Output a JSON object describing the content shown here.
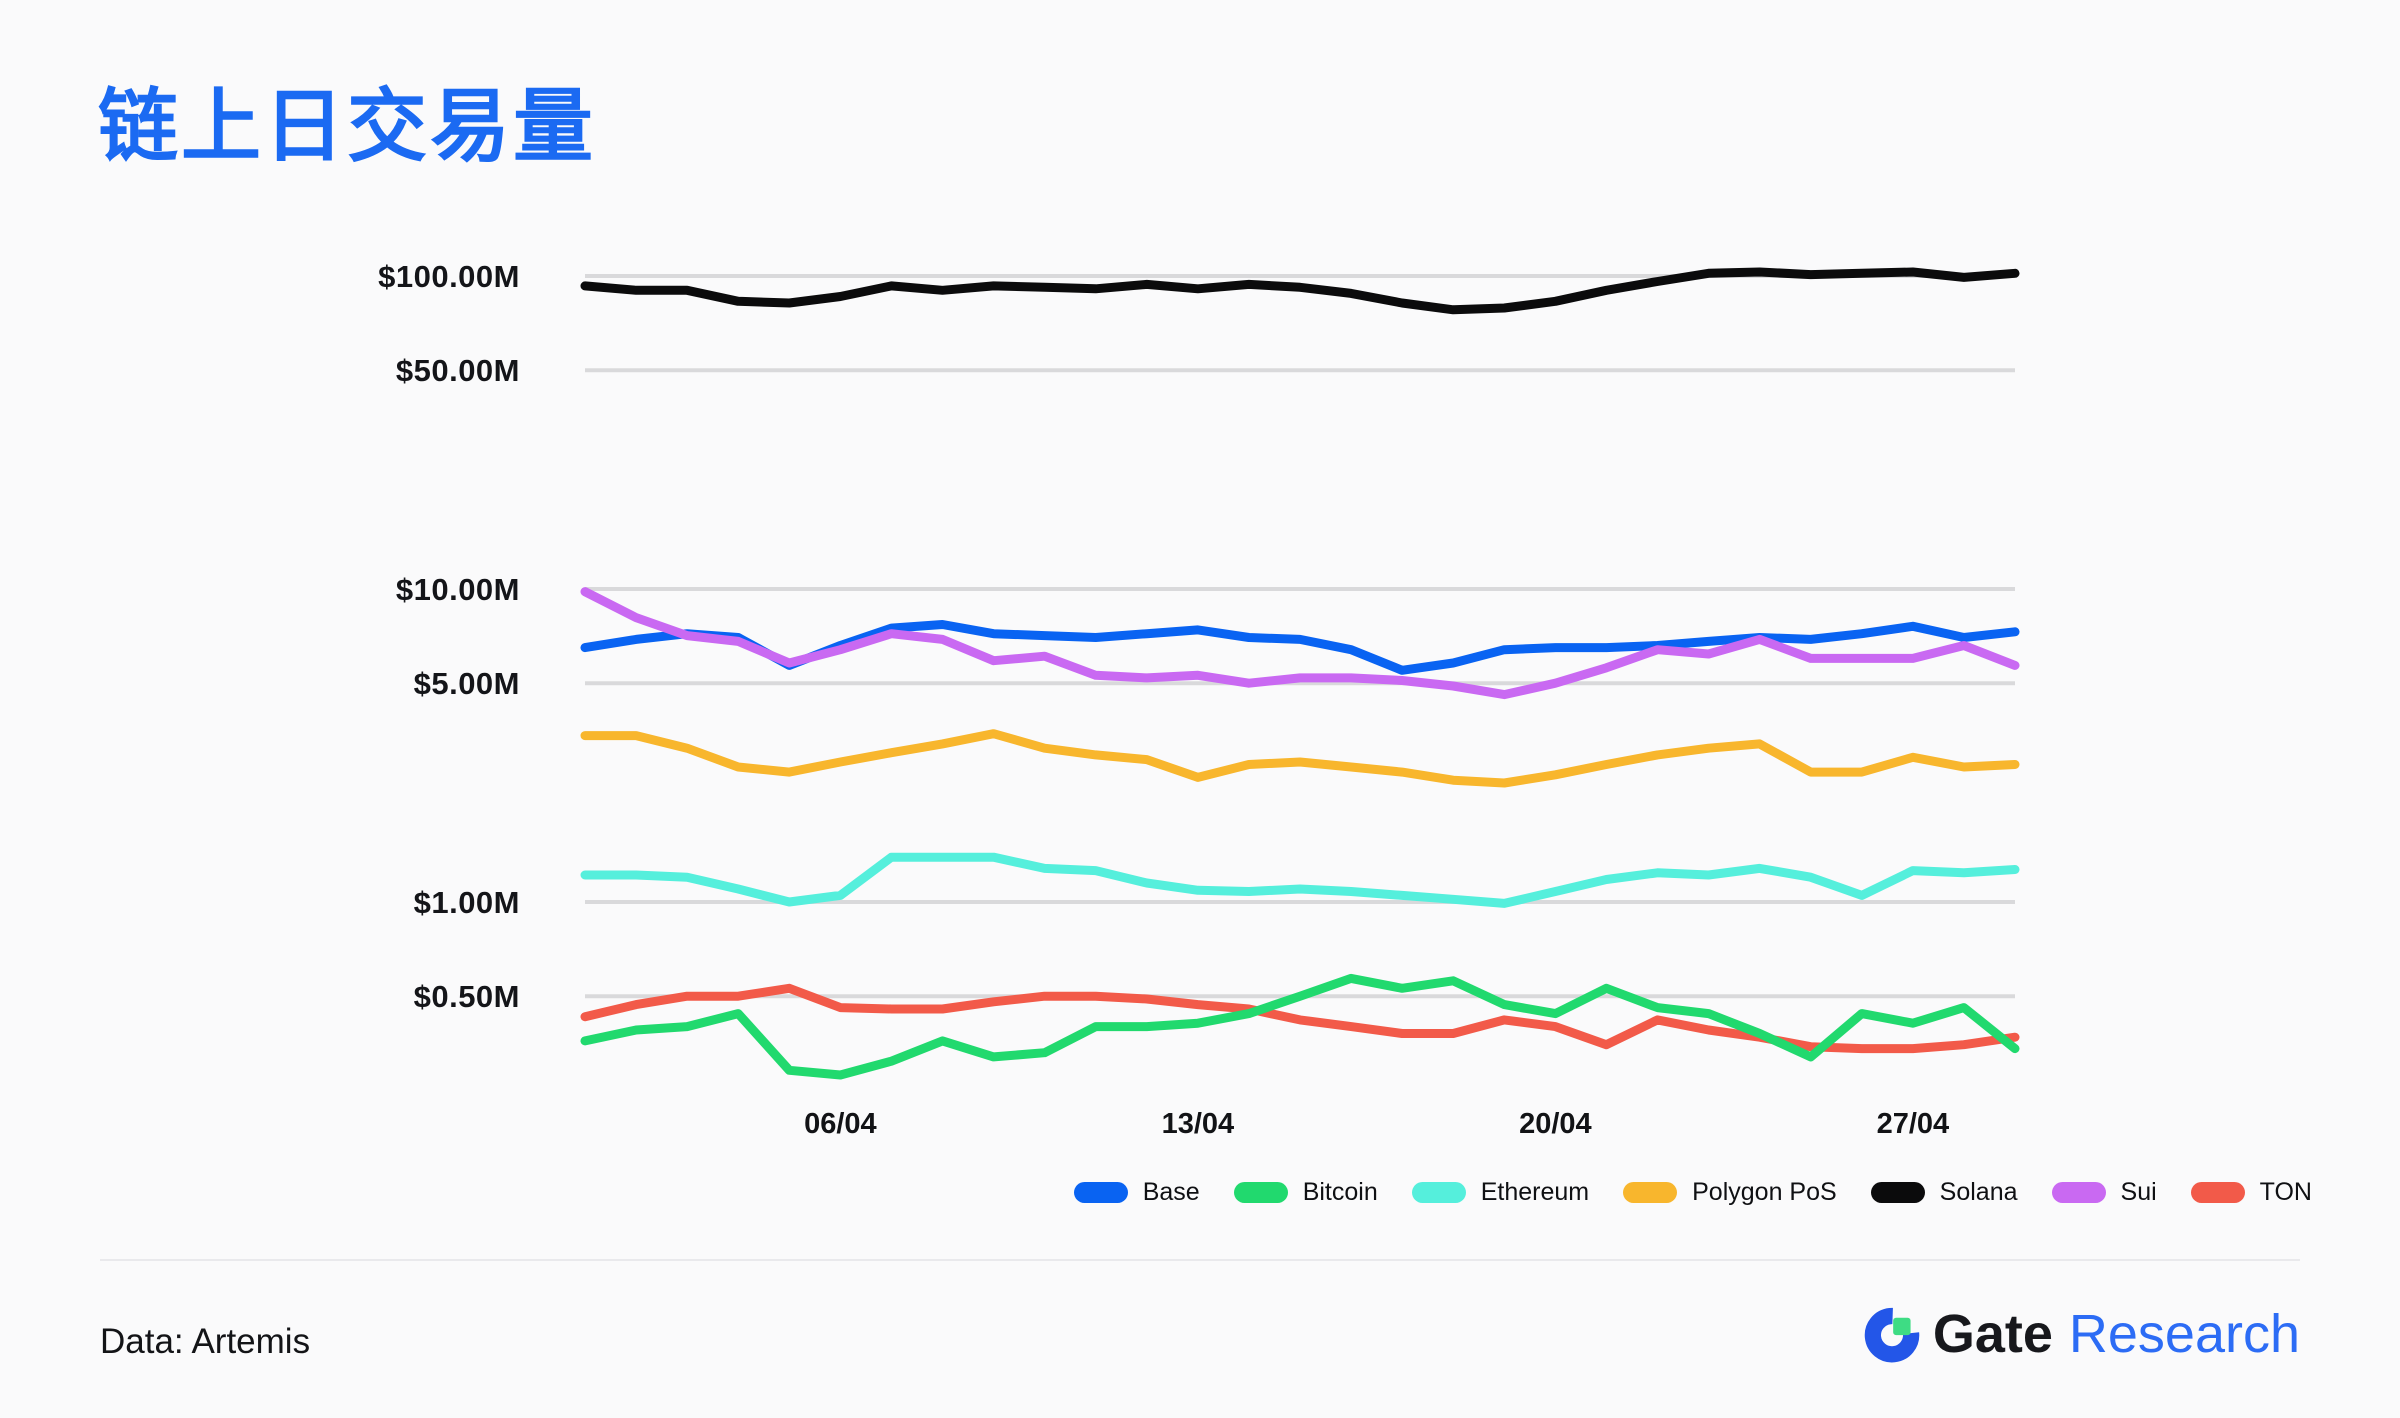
{
  "title": "链上日交易量",
  "source_label": "Data: Artemis",
  "brand": {
    "name_primary": "Gate",
    "name_secondary": "Research"
  },
  "colors": {
    "background": "#FAFAFB",
    "title": "#1B6AF2",
    "grid": "#D9D9DB",
    "axis_text": "#141519",
    "separator": "#E9E9EC",
    "brand_ring_blue": "#2356E8",
    "brand_square_green": "#3EDC84",
    "brand_research_blue": "#2C6CF5"
  },
  "chart_data": {
    "type": "line",
    "title": "链上日交易量",
    "unit": "USD millions per day",
    "y_scale": "log",
    "grid": "horizontal-only",
    "legend_position": "bottom-right",
    "x": [
      "01/04",
      "02/04",
      "03/04",
      "04/04",
      "05/04",
      "06/04",
      "07/04",
      "08/04",
      "09/04",
      "10/04",
      "11/04",
      "12/04",
      "13/04",
      "14/04",
      "15/04",
      "16/04",
      "17/04",
      "18/04",
      "19/04",
      "20/04",
      "21/04",
      "22/04",
      "23/04",
      "24/04",
      "25/04",
      "26/04",
      "27/04",
      "28/04",
      "29/04"
    ],
    "x_tick_labels": [
      {
        "label": "06/04",
        "index": 5
      },
      {
        "label": "13/04",
        "index": 12
      },
      {
        "label": "20/04",
        "index": 19
      },
      {
        "label": "27/04",
        "index": 26
      }
    ],
    "y_ticks": [
      {
        "label": "$100.00M",
        "value": 100
      },
      {
        "label": "$50.00M",
        "value": 50
      },
      {
        "label": "$10.00M",
        "value": 10
      },
      {
        "label": "$5.00M",
        "value": 5
      },
      {
        "label": "$1.00M",
        "value": 1
      },
      {
        "label": "$0.50M",
        "value": 0.5
      }
    ],
    "legend": [
      {
        "label": "Base",
        "color": "#0963F2"
      },
      {
        "label": "Bitcoin",
        "color": "#21D96E"
      },
      {
        "label": "Ethereum",
        "color": "#55EFDC"
      },
      {
        "label": "Polygon PoS",
        "color": "#F8B62D"
      },
      {
        "label": "Solana",
        "color": "#0B0B0C"
      },
      {
        "label": "Sui",
        "color": "#C969F2"
      },
      {
        "label": "TON",
        "color": "#F25A49"
      }
    ],
    "series": [
      {
        "name": "Solana",
        "color": "#0B0B0C",
        "values": [
          93,
          90,
          90,
          83,
          82,
          86,
          93,
          90,
          93,
          92,
          91,
          94,
          91,
          94,
          92,
          88,
          82,
          78,
          79,
          83,
          90,
          96,
          102,
          103,
          101,
          102,
          103,
          99,
          102
        ]
      },
      {
        "name": "Polygon PoS",
        "color": "#F8B62D",
        "values": [
          3.4,
          3.4,
          3.1,
          2.7,
          2.6,
          2.8,
          3.0,
          3.2,
          3.45,
          3.1,
          2.95,
          2.85,
          2.5,
          2.75,
          2.8,
          2.7,
          2.6,
          2.45,
          2.4,
          2.55,
          2.75,
          2.95,
          3.1,
          3.2,
          2.6,
          2.6,
          2.9,
          2.7,
          2.75
        ]
      },
      {
        "name": "Ethereum",
        "color": "#55EFDC",
        "values": [
          1.22,
          1.22,
          1.2,
          1.1,
          1.0,
          1.05,
          1.39,
          1.39,
          1.39,
          1.28,
          1.26,
          1.15,
          1.09,
          1.08,
          1.1,
          1.08,
          1.05,
          1.02,
          0.99,
          1.08,
          1.18,
          1.24,
          1.22,
          1.28,
          1.2,
          1.05,
          1.26,
          1.24,
          1.27
        ]
      },
      {
        "name": "TON",
        "color": "#F25A49",
        "values": [
          0.43,
          0.47,
          0.5,
          0.5,
          0.53,
          0.46,
          0.455,
          0.455,
          0.48,
          0.5,
          0.5,
          0.49,
          0.47,
          0.455,
          0.42,
          0.4,
          0.38,
          0.38,
          0.42,
          0.4,
          0.35,
          0.42,
          0.39,
          0.37,
          0.345,
          0.34,
          0.34,
          0.35,
          0.37
        ]
      },
      {
        "name": "Base",
        "color": "#0963F2",
        "values": [
          6.5,
          6.9,
          7.2,
          7.0,
          5.7,
          6.6,
          7.5,
          7.7,
          7.2,
          7.1,
          7.0,
          7.2,
          7.4,
          7.0,
          6.9,
          6.4,
          5.5,
          5.8,
          6.4,
          6.5,
          6.5,
          6.6,
          6.8,
          7.0,
          6.9,
          7.2,
          7.6,
          7.0,
          7.3
        ]
      },
      {
        "name": "Sui",
        "color": "#C969F2",
        "values": [
          9.8,
          8.1,
          7.1,
          6.8,
          5.8,
          6.4,
          7.2,
          6.9,
          5.9,
          6.1,
          5.3,
          5.2,
          5.3,
          5.0,
          5.2,
          5.2,
          5.1,
          4.9,
          4.6,
          5.0,
          5.6,
          6.4,
          6.2,
          6.9,
          6.0,
          6.0,
          6.0,
          6.6,
          5.7
        ]
      },
      {
        "name": "Bitcoin",
        "color": "#21D96E",
        "values": [
          0.36,
          0.39,
          0.4,
          0.44,
          0.29,
          0.28,
          0.31,
          0.36,
          0.32,
          0.33,
          0.4,
          0.4,
          0.41,
          0.44,
          0.5,
          0.57,
          0.53,
          0.56,
          0.47,
          0.44,
          0.53,
          0.46,
          0.44,
          0.38,
          0.32,
          0.44,
          0.41,
          0.46,
          0.34
        ]
      }
    ]
  }
}
